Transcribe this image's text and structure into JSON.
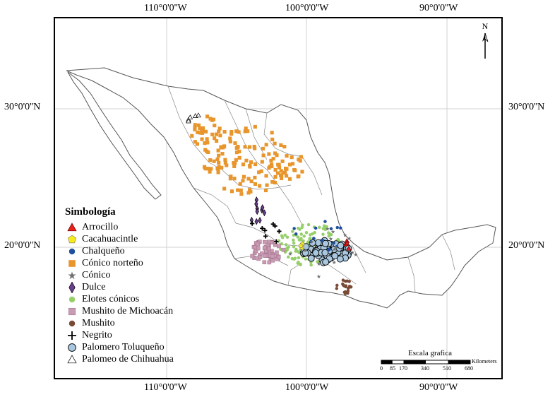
{
  "graticule": {
    "top": [
      "110°0'0''W",
      "100°0'0''W",
      "90°0'0''W"
    ],
    "bottom": [
      "110°0'0''W",
      "100°0'0''W",
      "90°0'0''W"
    ],
    "left": [
      "30°0'0''N",
      "20°0'0''N"
    ],
    "right": [
      "30°0'0''N",
      "20°0'0''N"
    ]
  },
  "north_label": "N",
  "legend": {
    "title": "Simbología",
    "items": [
      {
        "label": "Arrocillo",
        "icon": "red-triangle",
        "color": "#e8211d"
      },
      {
        "label": "Cacahuacintle",
        "icon": "yellow-pentagon",
        "color": "#f6ea1d"
      },
      {
        "label": "Chalqueño",
        "icon": "blue-dot",
        "color": "#1f4fa0"
      },
      {
        "label": "Cónico norteño",
        "icon": "orange-square",
        "color": "#e8952c"
      },
      {
        "label": "Cónico",
        "icon": "gray-star",
        "color": "#6e6e6e"
      },
      {
        "label": "Dulce",
        "icon": "purple-diamond",
        "color": "#6a3f8f"
      },
      {
        "label": "Elotes cónicos",
        "icon": "green-dot",
        "color": "#96cf6a"
      },
      {
        "label": "Mushito de Michoacán",
        "icon": "pink-square",
        "color": "#c99ab3"
      },
      {
        "label": "Mushito",
        "icon": "brown-dot",
        "color": "#7b4a36"
      },
      {
        "label": "Negrito",
        "icon": "black-cross",
        "color": "#000000"
      },
      {
        "label": "Palomero Toluqueño",
        "icon": "lightblue-circle",
        "color": "#a9c8df"
      },
      {
        "label": "Palomeo de Chihuahua",
        "icon": "white-triangle",
        "color": "#ffffff"
      }
    ]
  },
  "scale": {
    "title": "Escala grafica",
    "unit": "Kilometers",
    "ticks": [
      "0",
      "85",
      "170",
      "340",
      "510",
      "680"
    ]
  }
}
